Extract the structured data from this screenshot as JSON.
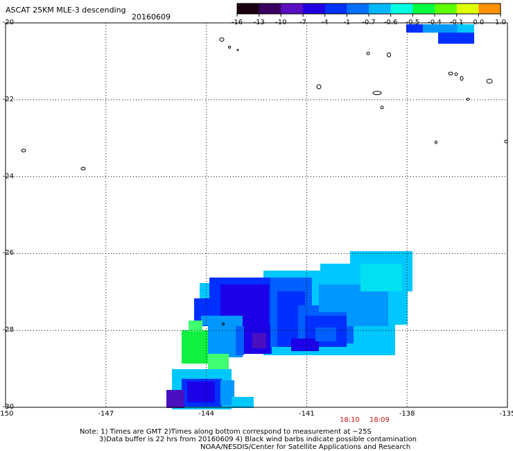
{
  "header": {
    "title": "ASCAT 25KM MLE-3 descending",
    "date": "20160609"
  },
  "colorbar": {
    "labels": [
      "-16",
      "-13",
      "-10",
      "-7",
      "-4",
      "-1",
      "-0.7",
      "-0.6",
      "-0.5",
      "-0.4",
      "-0.1",
      "0.0",
      "1.0"
    ],
    "colors": [
      "#1a0010",
      "#3a0060",
      "#5a10c0",
      "#2000e0",
      "#0030ff",
      "#0070ff",
      "#00b8ff",
      "#00ffe0",
      "#00ff40",
      "#60ff00",
      "#e0ff00",
      "#ff9000",
      "#ff2000"
    ]
  },
  "map": {
    "lon_ticks": [
      "-150",
      "-147",
      "-144",
      "-141",
      "-138",
      "-135"
    ],
    "lat_ticks": [
      "-20",
      "-22",
      "-24",
      "-26",
      "-28",
      "-30"
    ],
    "lon_range": [
      -150,
      -135
    ],
    "lat_range": [
      -30,
      -20
    ],
    "grid": "dotted",
    "pass_times": [
      "18:10",
      "18:09"
    ]
  },
  "footer": {
    "note1": "Note: 1) Times are GMT 2)Times along bottom correspond to measurement at ~25S",
    "note2": "3)Data buffer is 22 hrs from 20160609 4) Black wind barbs indicate possible contamination",
    "credit": "NOAA/NESDIS/Center for Satellite Applications and Research"
  }
}
